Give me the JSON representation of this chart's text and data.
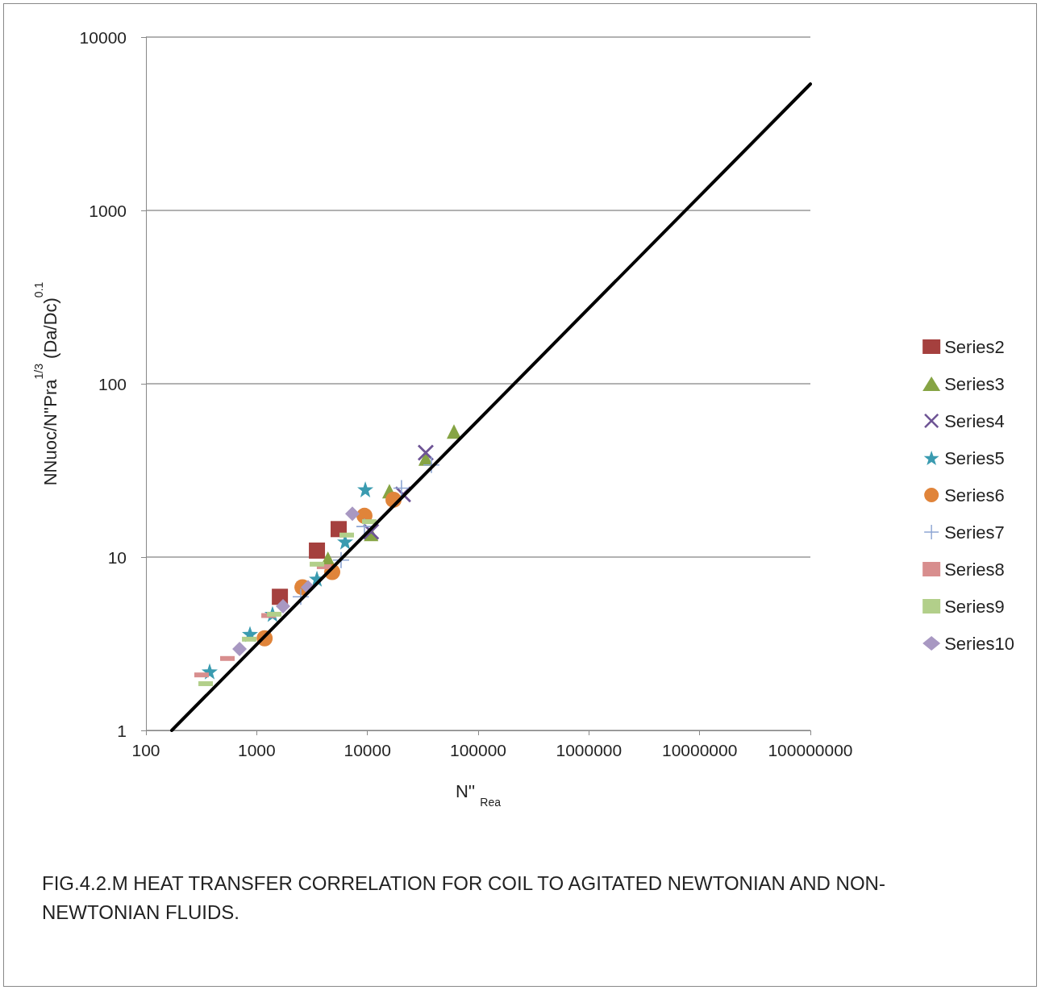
{
  "chart_data": {
    "type": "scatter",
    "xlabel": "N'' $_{Rea}$",
    "ylabel": "NNuoc/N''Pra$^{1/3}$ (Da/Dc)$^{0.1}$",
    "annotations": [
      "FIG.4.2.M HEAT TRANSFER CORRELATION FOR COIL TO AGITATED NEWTONIAN AND NON-NEWTONIAN FLUIDS."
    ],
    "log": "xy",
    "grid": "y",
    "legend": "right",
    "xlim": [
      100,
      100000000
    ],
    "xticks": [
      100,
      1000,
      10000,
      100000,
      1000000,
      10000000,
      100000000
    ],
    "ylim": [
      1,
      10000
    ],
    "yticks": [
      1,
      10,
      100,
      1000,
      10000
    ],
    "series": [
      {
        "name": "Series2",
        "color": "#a5403e",
        "marker": "square",
        "x": [
          1620,
          3500,
          5500
        ],
        "values": [
          5.9,
          10.9,
          14.5
        ]
      },
      {
        "name": "Series3",
        "color": "#86a444",
        "marker": "triangle",
        "x": [
          4400,
          10800,
          15800,
          33600,
          60500
        ],
        "values": [
          9.8,
          13.6,
          24,
          37,
          53
        ]
      },
      {
        "name": "Series4",
        "color": "#6e5495",
        "marker": "cross",
        "x": [
          10800,
          21000,
          33600
        ],
        "values": [
          14,
          23,
          40
        ]
      },
      {
        "name": "Series5",
        "color": "#3a9bb0",
        "marker": "star",
        "x": [
          376,
          870,
          1390,
          3500,
          6290,
          9570
        ],
        "values": [
          2.19,
          3.6,
          4.7,
          7.5,
          12.3,
          24.6
        ]
      },
      {
        "name": "Series6",
        "color": "#e0843a",
        "marker": "circle",
        "x": [
          1180,
          2590,
          4810,
          9400,
          17200
        ],
        "values": [
          3.4,
          6.7,
          8.2,
          17.3,
          21.4
        ]
      },
      {
        "name": "Series7",
        "color": "#8ea6d4",
        "marker": "plus",
        "x": [
          2500,
          5780,
          9400,
          20300,
          37800
        ],
        "values": [
          5.9,
          9.6,
          15,
          25,
          34
        ]
      },
      {
        "name": "Series8",
        "color": "#d88e8e",
        "x": [
          318,
          544,
          1280,
          4060
        ],
        "values": [
          2.09,
          2.6,
          4.6,
          8.8
        ]
      },
      {
        "name": "Series9",
        "color": "#b2cf8a",
        "x": [
          346,
          856,
          1440,
          3500,
          6500,
          10400
        ],
        "values": [
          1.86,
          3.36,
          4.68,
          9.1,
          13.4,
          16
        ]
      },
      {
        "name": "Series10",
        "color": "#a898c2",
        "marker": "diamond",
        "x": [
          700,
          1730,
          2910,
          7310
        ],
        "values": [
          2.95,
          5.2,
          6.7,
          17.8
        ]
      },
      {
        "type": "line",
        "color": "#000000",
        "marker": "none",
        "line_style": "solid",
        "x": [
          171,
          100000000
        ],
        "values": [
          1.0,
          5360
        ]
      }
    ]
  }
}
